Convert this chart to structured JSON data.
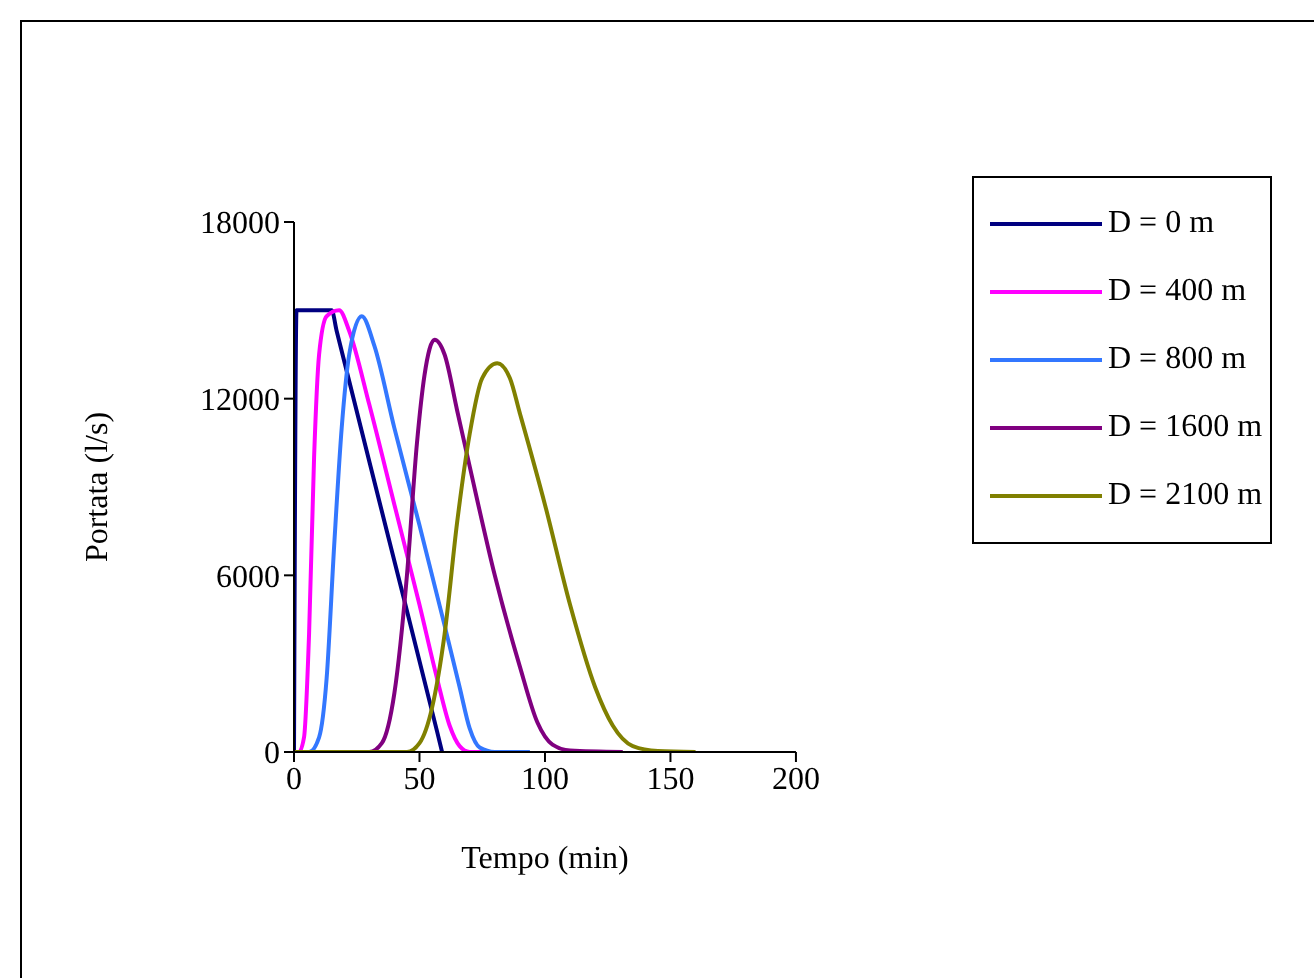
{
  "chart_data": {
    "type": "line",
    "xlabel": "Tempo (min)",
    "ylabel": "Portata (l/s)",
    "xlim": [
      0,
      200
    ],
    "xticks": [
      0,
      50,
      100,
      150,
      200
    ],
    "ylim": [
      0,
      18000
    ],
    "yticks": [
      0,
      6000,
      12000,
      18000
    ],
    "grid": false,
    "legend": "top right",
    "marker": "none",
    "line_style": "solid",
    "series": [
      {
        "name": "D = 0 m",
        "color": "#000080",
        "x": [
          0,
          1,
          15,
          17,
          37,
          57,
          59
        ],
        "values": [
          0,
          15000,
          15000,
          14300,
          7500,
          700,
          0
        ]
      },
      {
        "name": "D = 400 m",
        "color": "#ff00ff",
        "x": [
          0,
          2,
          4,
          6,
          8,
          10,
          13,
          18,
          22,
          30,
          40,
          50,
          57,
          62,
          66,
          70,
          80
        ],
        "values": [
          0,
          0,
          500,
          4000,
          10000,
          13500,
          14800,
          15000,
          14300,
          11800,
          8400,
          5000,
          2500,
          900,
          200,
          0,
          0
        ]
      },
      {
        "name": "D = 800 m",
        "color": "#3377ff",
        "x": [
          0,
          6,
          10,
          13,
          16,
          19,
          22,
          27,
          32,
          40,
          50,
          60,
          66,
          70,
          74,
          80,
          94
        ],
        "values": [
          0,
          0,
          500,
          2500,
          7000,
          11000,
          13500,
          14800,
          13800,
          11000,
          7700,
          4300,
          2200,
          800,
          150,
          0,
          0
        ]
      },
      {
        "name": "D = 1600 m",
        "color": "#800080",
        "x": [
          0,
          30,
          35,
          40,
          45,
          49,
          52,
          56,
          60,
          65,
          70,
          80,
          90,
          97,
          103,
          110,
          131
        ],
        "values": [
          0,
          0,
          300,
          2000,
          6000,
          10500,
          12800,
          14000,
          13500,
          11600,
          9700,
          6000,
          2900,
          1000,
          250,
          50,
          0
        ]
      },
      {
        "name": "D = 2100 m",
        "color": "#808000",
        "x": [
          0,
          45,
          50,
          55,
          60,
          65,
          70,
          75,
          81,
          86,
          90,
          100,
          110,
          120,
          127,
          135,
          145,
          160
        ],
        "values": [
          0,
          0,
          300,
          1500,
          4000,
          7800,
          10800,
          12700,
          13200,
          12700,
          11500,
          8400,
          5000,
          2200,
          900,
          200,
          30,
          0
        ]
      }
    ]
  }
}
